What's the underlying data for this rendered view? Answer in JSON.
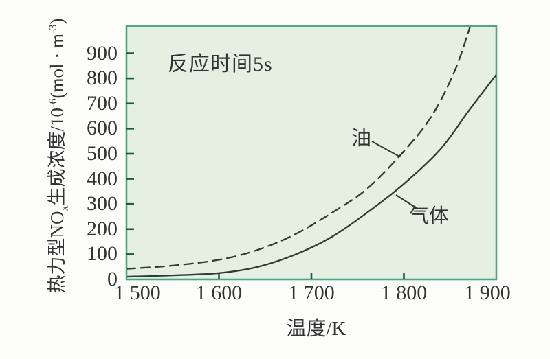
{
  "figure": {
    "oil_label": "油",
    "gas_label": "气体",
    "ylabel_parts": [
      {
        "t": "热力型NO"
      },
      {
        "t": "x",
        "s": "sub"
      },
      {
        "t": "生成浓度/10"
      },
      {
        "t": "-6",
        "s": "sup"
      },
      {
        "t": "(mol · m"
      },
      {
        "t": "-3",
        "s": "sup"
      },
      {
        "t": ")"
      }
    ]
  },
  "chart_data": {
    "type": "line",
    "title": "",
    "annotation": "反应时间5s",
    "xlabel": "温度/K",
    "ylabel": "热力型NOₓ生成浓度/10⁻⁶(mol·m⁻³)",
    "xlim": [
      1500,
      1900
    ],
    "ylim": [
      0,
      1008
    ],
    "grid": false,
    "legend_position": "inline-labels",
    "xticks": [
      1500,
      1600,
      1700,
      1800,
      1900
    ],
    "xtick_labels": [
      "1 500",
      "1 600",
      "1 700",
      "1 800",
      "1 900"
    ],
    "yticks": [
      0,
      100,
      200,
      300,
      400,
      500,
      600,
      700,
      800,
      900
    ],
    "series": [
      {
        "name": "油",
        "line_style": "dashed",
        "x": [
          1500,
          1550,
          1600,
          1640,
          1680,
          1720,
          1760,
          1800,
          1830,
          1855,
          1872
        ],
        "y": [
          42,
          55,
          78,
          115,
          175,
          260,
          360,
          510,
          650,
          830,
          1010
        ]
      },
      {
        "name": "气体",
        "line_style": "solid",
        "x": [
          1500,
          1550,
          1600,
          1640,
          1680,
          1720,
          1760,
          1800,
          1840,
          1870,
          1900
        ],
        "y": [
          11,
          16,
          25,
          48,
          95,
          165,
          265,
          380,
          520,
          670,
          815
        ]
      }
    ],
    "colors": {
      "plot_bg": "#e5f0e2",
      "plot_border": "#4fa57e",
      "tick": "#245840",
      "curve": "#2e3a33",
      "text": "#333333"
    }
  }
}
